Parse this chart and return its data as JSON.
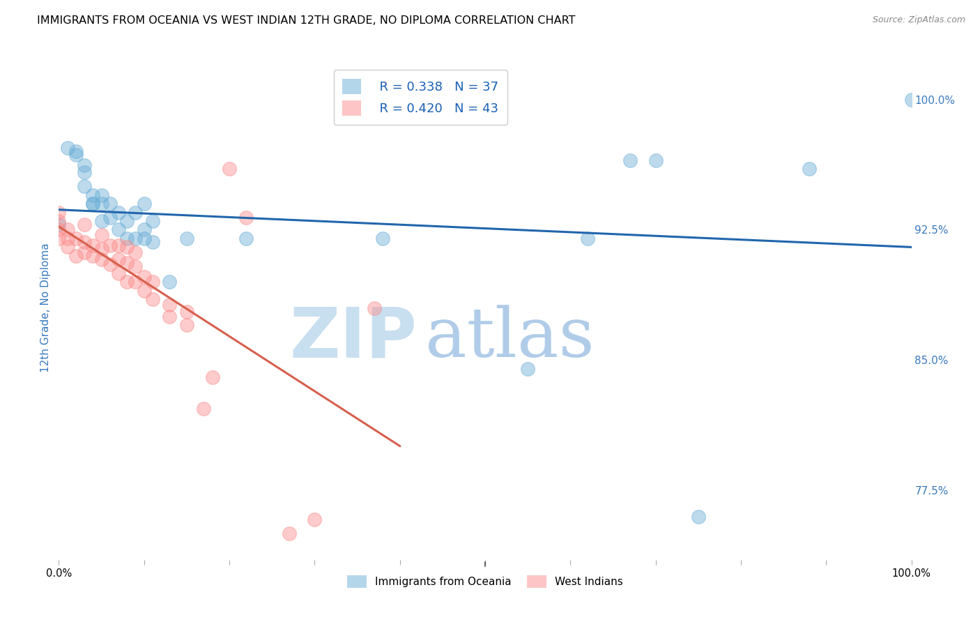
{
  "title": "IMMIGRANTS FROM OCEANIA VS WEST INDIAN 12TH GRADE, NO DIPLOMA CORRELATION CHART",
  "source": "Source: ZipAtlas.com",
  "ylabel": "12th Grade, No Diploma",
  "legend_blue_r": "R = 0.338",
  "legend_blue_n": "N = 37",
  "legend_pink_r": "R = 0.420",
  "legend_pink_n": "N = 43",
  "legend_blue_label": "Immigrants from Oceania",
  "legend_pink_label": "West Indians",
  "xmin": 0.0,
  "xmax": 1.0,
  "ymin": 0.735,
  "ymax": 1.025,
  "yticks": [
    0.775,
    0.85,
    0.925,
    1.0
  ],
  "ytick_labels": [
    "77.5%",
    "85.0%",
    "92.5%",
    "100.0%"
  ],
  "xticks": [
    0.0,
    0.1,
    0.2,
    0.3,
    0.4,
    0.5,
    0.6,
    0.7,
    0.8,
    0.9,
    1.0
  ],
  "xtick_labels": [
    "0.0%",
    "",
    "",
    "",
    "",
    "",
    "",
    "",
    "",
    "",
    "100.0%"
  ],
  "blue_color": "#6baed6",
  "pink_color": "#fc8d8d",
  "trend_blue_color": "#2166ac",
  "trend_pink_color": "#d6604d",
  "blue_scatter_x": [
    0.0,
    0.01,
    0.02,
    0.02,
    0.03,
    0.03,
    0.03,
    0.04,
    0.04,
    0.04,
    0.05,
    0.05,
    0.05,
    0.06,
    0.06,
    0.07,
    0.07,
    0.08,
    0.08,
    0.09,
    0.09,
    0.1,
    0.1,
    0.1,
    0.11,
    0.11,
    0.13,
    0.15,
    0.22,
    0.38,
    0.55,
    0.62,
    0.67,
    0.7,
    0.75,
    0.88,
    1.0
  ],
  "blue_scatter_y": [
    0.928,
    0.972,
    0.97,
    0.968,
    0.95,
    0.958,
    0.962,
    0.94,
    0.945,
    0.94,
    0.93,
    0.94,
    0.945,
    0.932,
    0.94,
    0.925,
    0.935,
    0.92,
    0.93,
    0.92,
    0.935,
    0.92,
    0.925,
    0.94,
    0.918,
    0.93,
    0.895,
    0.92,
    0.92,
    0.92,
    0.845,
    0.92,
    0.965,
    0.965,
    0.76,
    0.96,
    1.0
  ],
  "pink_scatter_x": [
    0.0,
    0.0,
    0.0,
    0.0,
    0.01,
    0.01,
    0.01,
    0.02,
    0.02,
    0.03,
    0.03,
    0.03,
    0.04,
    0.04,
    0.05,
    0.05,
    0.05,
    0.06,
    0.06,
    0.07,
    0.07,
    0.07,
    0.08,
    0.08,
    0.08,
    0.09,
    0.09,
    0.09,
    0.1,
    0.1,
    0.11,
    0.11,
    0.13,
    0.13,
    0.15,
    0.15,
    0.17,
    0.18,
    0.2,
    0.22,
    0.27,
    0.3,
    0.37
  ],
  "pink_scatter_y": [
    0.92,
    0.925,
    0.93,
    0.935,
    0.915,
    0.92,
    0.925,
    0.91,
    0.92,
    0.912,
    0.918,
    0.928,
    0.91,
    0.916,
    0.908,
    0.914,
    0.922,
    0.905,
    0.916,
    0.9,
    0.908,
    0.916,
    0.895,
    0.906,
    0.915,
    0.895,
    0.904,
    0.912,
    0.89,
    0.898,
    0.885,
    0.895,
    0.875,
    0.882,
    0.87,
    0.878,
    0.822,
    0.84,
    0.96,
    0.932,
    0.75,
    0.758,
    0.88
  ],
  "background_color": "#ffffff",
  "grid_color": "#cccccc",
  "title_fontsize": 11.5,
  "axis_label_color": "#3a7abf",
  "tick_label_color_right": "#3a7abf",
  "watermark_zip_color": "#c8dff0",
  "watermark_atlas_color": "#b0cce8"
}
